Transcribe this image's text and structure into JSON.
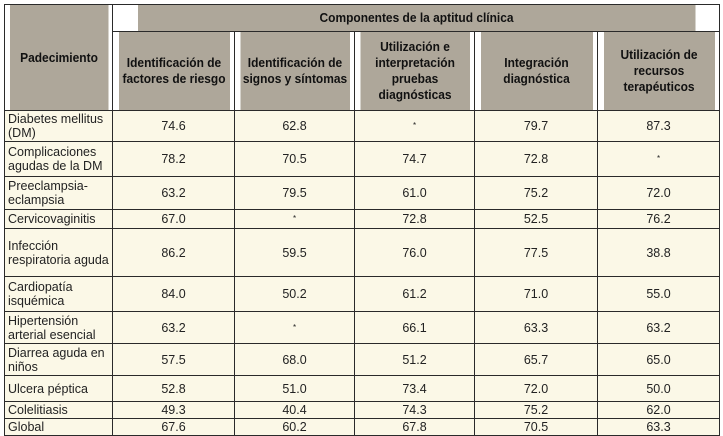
{
  "table": {
    "row_header": "Padecimiento",
    "group_header": "Componentes de la aptitud clínica",
    "columns": [
      "Identificación de factores de riesgo",
      "Identificación de signos y síntomas",
      "Utilización e interpretación pruebas diagnósticas",
      "Integración diagnóstica",
      "Utilización de recursos terapéuticos"
    ],
    "rows": [
      {
        "name": "Diabetes mellitus (DM)",
        "values": [
          "74.6",
          "62.8",
          "*",
          "79.7",
          "87.3"
        ]
      },
      {
        "name": "Complicaciones agudas de la DM",
        "values": [
          "78.2",
          "70.5",
          "74.7",
          "72.8",
          "*"
        ]
      },
      {
        "name": "Preeclampsia-eclampsia",
        "values": [
          "63.2",
          "79.5",
          "61.0",
          "75.2",
          "72.0"
        ]
      },
      {
        "name": "Cervicovaginitis",
        "values": [
          "67.0",
          "*",
          "72.8",
          "52.5",
          "76.2"
        ]
      },
      {
        "name": "Infección respiratoria aguda",
        "values": [
          "86.2",
          "59.5",
          "76.0",
          "77.5",
          "38.8"
        ]
      },
      {
        "name": "Cardiopatía isquémica",
        "values": [
          "84.0",
          "50.2",
          "61.2",
          "71.0",
          "55.0"
        ]
      },
      {
        "name": "Hipertensión arterial esencial",
        "values": [
          "63.2",
          "*",
          "66.1",
          "63.3",
          "63.2"
        ]
      },
      {
        "name": "Diarrea aguda en niños",
        "values": [
          "57.5",
          "68.0",
          "51.2",
          "65.7",
          "65.0"
        ]
      },
      {
        "name": "Ulcera péptica",
        "values": [
          "52.8",
          "51.0",
          "73.4",
          "72.0",
          "50.0"
        ]
      },
      {
        "name": "Colelitiasis",
        "values": [
          "49.3",
          "40.4",
          "74.3",
          "75.2",
          "62.0"
        ]
      },
      {
        "name": "Global",
        "values": [
          "67.6",
          "60.2",
          "67.8",
          "70.5",
          "63.3"
        ]
      }
    ]
  }
}
